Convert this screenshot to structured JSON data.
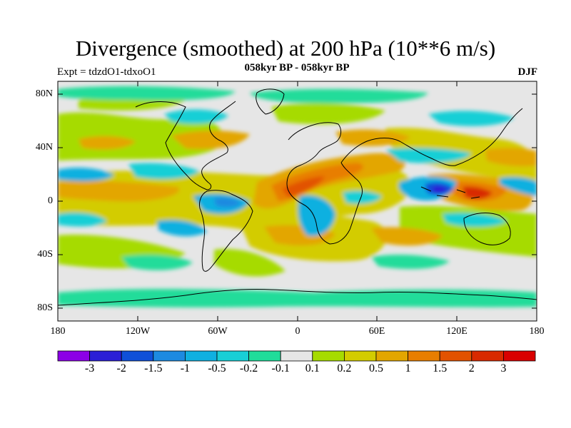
{
  "plot": {
    "title": "Divergence (smoothed) at 200 hPa (10**6 m/s)",
    "left_subtitle": "Expt = tdzdO1-tdxoO1",
    "center_subtitle": "058kyr BP - 058kyr BP",
    "right_subtitle": "DJF",
    "y_ticks": [
      "80N",
      "40N",
      "0",
      "40S",
      "80S"
    ],
    "x_ticks": [
      "180",
      "120W",
      "60W",
      "0",
      "60E",
      "120E",
      "180"
    ]
  },
  "colorbar": {
    "labels": [
      "-3",
      "-2",
      "-1.5",
      "-1",
      "-0.5",
      "-0.2",
      "-0.1",
      "0.1",
      "0.2",
      "0.5",
      "1",
      "1.5",
      "2",
      "3"
    ],
    "colors": [
      "#8c00e6",
      "#2b1fd6",
      "#0f50d8",
      "#1d8ae0",
      "#0fb0e0",
      "#18cfd6",
      "#20dc9a",
      "#e6e6e6",
      "#a6db00",
      "#d3cc00",
      "#e3a600",
      "#e87e00",
      "#e25200",
      "#d82a00",
      "#d90000"
    ]
  },
  "palette": {
    "neutral": "#e6e6e6",
    "land_outline": "#000000"
  }
}
